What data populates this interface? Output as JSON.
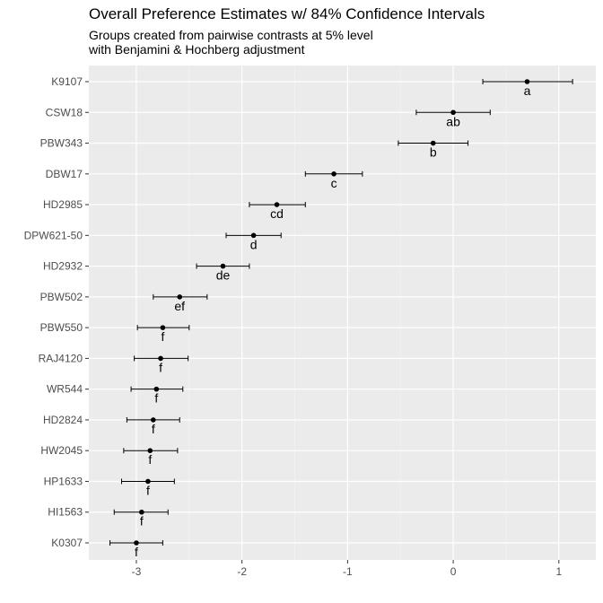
{
  "chart_data": {
    "type": "scatter",
    "title": "Overall Preference Estimates w/ 84% Confidence Intervals",
    "subtitle": [
      "Groups created from pairwise contrasts at 5% level",
      "with Benjamini & Hochberg adjustment"
    ],
    "xlabel": "",
    "ylabel": "",
    "xlim": [
      -3.45,
      1.35
    ],
    "xticks": [
      "-3",
      "-2",
      "-1",
      "0",
      "1"
    ],
    "grid": true,
    "categories": [
      "K9107",
      "CSW18",
      "PBW343",
      "DBW17",
      "HD2985",
      "DPW621-50",
      "HD2932",
      "PBW502",
      "PBW550",
      "RAJ4120",
      "WR544",
      "HD2824",
      "HW2045",
      "HP1633",
      "HI1563",
      "K0307"
    ],
    "estimate": [
      0.7,
      0.0,
      -0.19,
      -1.13,
      -1.67,
      -1.89,
      -2.18,
      -2.59,
      -2.75,
      -2.77,
      -2.81,
      -2.84,
      -2.87,
      -2.89,
      -2.95,
      -3.0
    ],
    "lower": [
      0.28,
      -0.35,
      -0.52,
      -1.4,
      -1.93,
      -2.15,
      -2.43,
      -2.84,
      -2.99,
      -3.02,
      -3.05,
      -3.09,
      -3.12,
      -3.14,
      -3.21,
      -3.25
    ],
    "upper": [
      1.13,
      0.35,
      0.14,
      -0.86,
      -1.4,
      -1.63,
      -1.93,
      -2.33,
      -2.5,
      -2.51,
      -2.56,
      -2.59,
      -2.61,
      -2.64,
      -2.7,
      -2.75
    ],
    "groups": [
      "a",
      "ab",
      "b",
      "c",
      "cd",
      "d",
      "de",
      "ef",
      "f",
      "f",
      "f",
      "f",
      "f",
      "f",
      "f",
      "f"
    ]
  }
}
